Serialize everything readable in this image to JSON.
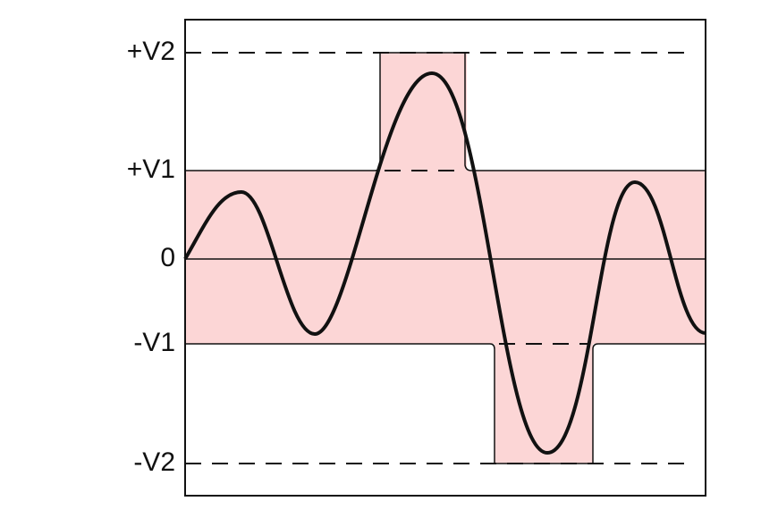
{
  "levels": [
    "+V2",
    "+V1",
    "0",
    "-V1",
    "-V2"
  ]
}
